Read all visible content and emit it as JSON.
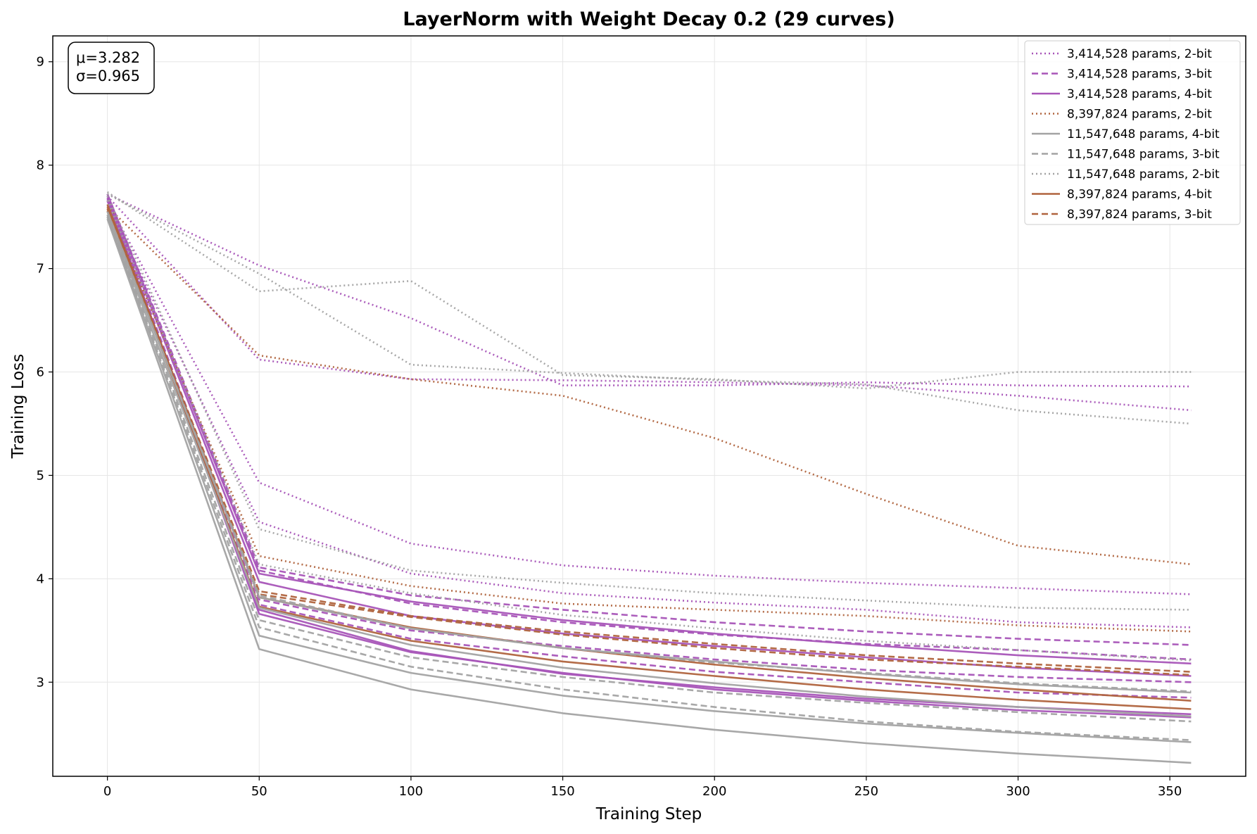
{
  "chart_data": {
    "type": "line",
    "title": "LayerNorm with Weight Decay 0.2 (29 curves)",
    "xlabel": "Training Step",
    "ylabel": "Training Loss",
    "xlim": [
      -18,
      375
    ],
    "ylim": [
      2.09,
      9.25
    ],
    "xticks": [
      "0",
      "50",
      "100",
      "150",
      "200",
      "250",
      "300",
      "350"
    ],
    "yticks": [
      "3",
      "4",
      "5",
      "6",
      "7",
      "8",
      "9"
    ],
    "grid": true,
    "legend_position": "top-right",
    "stats": {
      "mu": "μ=3.282",
      "sigma": "σ=0.965"
    },
    "colors": {
      "purple": "#a855b8",
      "brown": "#b0643e",
      "gray": "#a3a3a3"
    },
    "legend": [
      {
        "label": "3,414,528 params, 2-bit",
        "color": "purple",
        "dash": "dotted"
      },
      {
        "label": "3,414,528 params, 3-bit",
        "color": "purple",
        "dash": "dashed"
      },
      {
        "label": "3,414,528 params, 4-bit",
        "color": "purple",
        "dash": "solid"
      },
      {
        "label": "8,397,824 params, 2-bit",
        "color": "brown",
        "dash": "dotted"
      },
      {
        "label": "11,547,648 params, 4-bit",
        "color": "gray",
        "dash": "solid"
      },
      {
        "label": "11,547,648 params, 3-bit",
        "color": "gray",
        "dash": "dashed"
      },
      {
        "label": "11,547,648 params, 2-bit",
        "color": "gray",
        "dash": "dotted"
      },
      {
        "label": "8,397,824 params, 4-bit",
        "color": "brown",
        "dash": "solid"
      },
      {
        "label": "8,397,824 params, 3-bit",
        "color": "brown",
        "dash": "dashed"
      }
    ],
    "x": [
      0,
      50,
      100,
      150,
      200,
      250,
      300,
      357
    ],
    "series": [
      {
        "color": "purple",
        "dash": "dotted",
        "values": [
          7.72,
          7.03,
          6.52,
          5.87,
          5.87,
          5.9,
          5.87,
          5.86
        ]
      },
      {
        "color": "purple",
        "dash": "dotted",
        "values": [
          7.7,
          6.12,
          5.93,
          5.92,
          5.9,
          5.87,
          5.77,
          5.63
        ]
      },
      {
        "color": "purple",
        "dash": "dotted",
        "values": [
          7.65,
          4.93,
          4.34,
          4.13,
          4.03,
          3.96,
          3.91,
          3.85
        ]
      },
      {
        "color": "purple",
        "dash": "dotted",
        "values": [
          7.62,
          4.55,
          4.05,
          3.86,
          3.77,
          3.7,
          3.58,
          3.53
        ]
      },
      {
        "color": "purple",
        "dash": "dashed",
        "values": [
          7.72,
          4.11,
          3.84,
          3.7,
          3.58,
          3.49,
          3.42,
          3.36
        ]
      },
      {
        "color": "purple",
        "dash": "dashed",
        "values": [
          7.7,
          4.08,
          3.76,
          3.58,
          3.46,
          3.37,
          3.31,
          3.22
        ]
      },
      {
        "color": "purple",
        "dash": "dashed",
        "values": [
          7.68,
          3.8,
          3.5,
          3.35,
          3.22,
          3.12,
          3.05,
          3.0
        ]
      },
      {
        "color": "purple",
        "dash": "dashed",
        "values": [
          7.66,
          3.75,
          3.42,
          3.25,
          3.1,
          3.0,
          2.9,
          2.85
        ]
      },
      {
        "color": "purple",
        "dash": "solid",
        "values": [
          7.72,
          4.05,
          3.78,
          3.6,
          3.47,
          3.36,
          3.26,
          3.18
        ]
      },
      {
        "color": "purple",
        "dash": "solid",
        "values": [
          7.7,
          3.97,
          3.64,
          3.47,
          3.35,
          3.24,
          3.14,
          3.06
        ]
      },
      {
        "color": "purple",
        "dash": "solid",
        "values": [
          7.68,
          3.7,
          3.3,
          3.08,
          2.95,
          2.84,
          2.76,
          2.69
        ]
      },
      {
        "color": "purple",
        "dash": "solid",
        "values": [
          7.66,
          3.66,
          3.29,
          3.09,
          2.93,
          2.82,
          2.73,
          2.66
        ]
      },
      {
        "color": "brown",
        "dash": "dotted",
        "values": [
          7.6,
          6.16,
          5.93,
          5.77,
          5.36,
          4.82,
          4.32,
          4.14
        ]
      },
      {
        "color": "brown",
        "dash": "dotted",
        "values": [
          7.58,
          4.22,
          3.93,
          3.76,
          3.7,
          3.64,
          3.55,
          3.49
        ]
      },
      {
        "color": "brown",
        "dash": "solid",
        "values": [
          7.62,
          3.82,
          3.53,
          3.33,
          3.17,
          3.04,
          2.93,
          2.82
        ]
      },
      {
        "color": "brown",
        "dash": "solid",
        "values": [
          7.6,
          3.73,
          3.4,
          3.2,
          3.06,
          2.93,
          2.83,
          2.74
        ]
      },
      {
        "color": "brown",
        "dash": "dashed",
        "values": [
          7.58,
          3.88,
          3.64,
          3.49,
          3.37,
          3.26,
          3.18,
          3.1
        ]
      },
      {
        "color": "brown",
        "dash": "dashed",
        "values": [
          7.56,
          3.85,
          3.63,
          3.46,
          3.33,
          3.22,
          3.15,
          3.07
        ]
      },
      {
        "color": "gray",
        "dash": "dotted",
        "values": [
          7.74,
          6.78,
          6.88,
          5.97,
          5.93,
          5.84,
          6.0,
          6.0
        ]
      },
      {
        "color": "gray",
        "dash": "dotted",
        "values": [
          7.72,
          6.95,
          6.07,
          5.99,
          5.92,
          5.88,
          5.63,
          5.5
        ]
      },
      {
        "color": "gray",
        "dash": "dotted",
        "values": [
          7.7,
          4.48,
          4.08,
          3.96,
          3.86,
          3.79,
          3.72,
          3.7
        ]
      },
      {
        "color": "gray",
        "dash": "dotted",
        "values": [
          7.66,
          4.14,
          3.86,
          3.65,
          3.52,
          3.4,
          3.31,
          3.21
        ]
      },
      {
        "color": "gray",
        "dash": "dashed",
        "values": [
          7.55,
          3.84,
          3.52,
          3.33,
          3.19,
          3.09,
          2.99,
          2.91
        ]
      },
      {
        "color": "gray",
        "dash": "dashed",
        "values": [
          7.52,
          3.6,
          3.24,
          3.05,
          2.9,
          2.8,
          2.71,
          2.62
        ]
      },
      {
        "color": "gray",
        "dash": "dashed",
        "values": [
          7.5,
          3.53,
          3.15,
          2.93,
          2.76,
          2.62,
          2.52,
          2.44
        ]
      },
      {
        "color": "gray",
        "dash": "solid",
        "values": [
          7.55,
          3.82,
          3.52,
          3.33,
          3.2,
          3.08,
          2.98,
          2.9
        ]
      },
      {
        "color": "gray",
        "dash": "solid",
        "values": [
          7.52,
          3.72,
          3.36,
          3.14,
          2.99,
          2.86,
          2.76,
          2.67
        ]
      },
      {
        "color": "gray",
        "dash": "solid",
        "values": [
          7.5,
          3.45,
          3.09,
          2.87,
          2.72,
          2.6,
          2.51,
          2.42
        ]
      },
      {
        "color": "gray",
        "dash": "solid",
        "values": [
          7.48,
          3.32,
          2.93,
          2.7,
          2.54,
          2.41,
          2.31,
          2.22
        ]
      }
    ]
  }
}
